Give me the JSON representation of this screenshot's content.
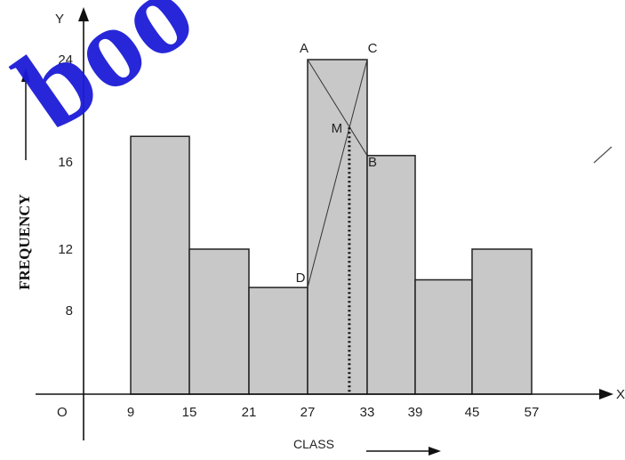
{
  "chart_data": {
    "type": "bar",
    "xlabel": "CLASS",
    "ylabel": "FREQUENCY",
    "axis_names": {
      "x": "X",
      "y": "Y",
      "origin": "O"
    },
    "x_ticks": [
      "9",
      "15",
      "21",
      "27",
      "33",
      "39",
      "45",
      "57"
    ],
    "y_ticks": [
      "8",
      "12",
      "16",
      "24"
    ],
    "bars": [
      {
        "from": 9,
        "to": 15,
        "value": 18
      },
      {
        "from": 15,
        "to": 21,
        "value": 12
      },
      {
        "from": 21,
        "to": 27,
        "value": 9.5
      },
      {
        "from": 27,
        "to": 33,
        "value": 24
      },
      {
        "from": 33,
        "to": 39,
        "value": 16.5
      },
      {
        "from": 39,
        "to": 45,
        "value": 10
      },
      {
        "from": 45,
        "to": 57,
        "value": 12
      }
    ],
    "points": [
      {
        "label": "A",
        "x": 27,
        "y": 24
      },
      {
        "label": "C",
        "x": 33,
        "y": 24
      },
      {
        "label": "D",
        "x": 27,
        "y": 9.5
      },
      {
        "label": "B",
        "x": 33,
        "y": 16.5
      },
      {
        "label": "M",
        "x": 31.2,
        "y": 18.7
      }
    ],
    "mode_x": 31.2,
    "watermark": "boo",
    "colors": {
      "bar": "#c8c8c8",
      "watermark": "#1c1cd8"
    }
  }
}
